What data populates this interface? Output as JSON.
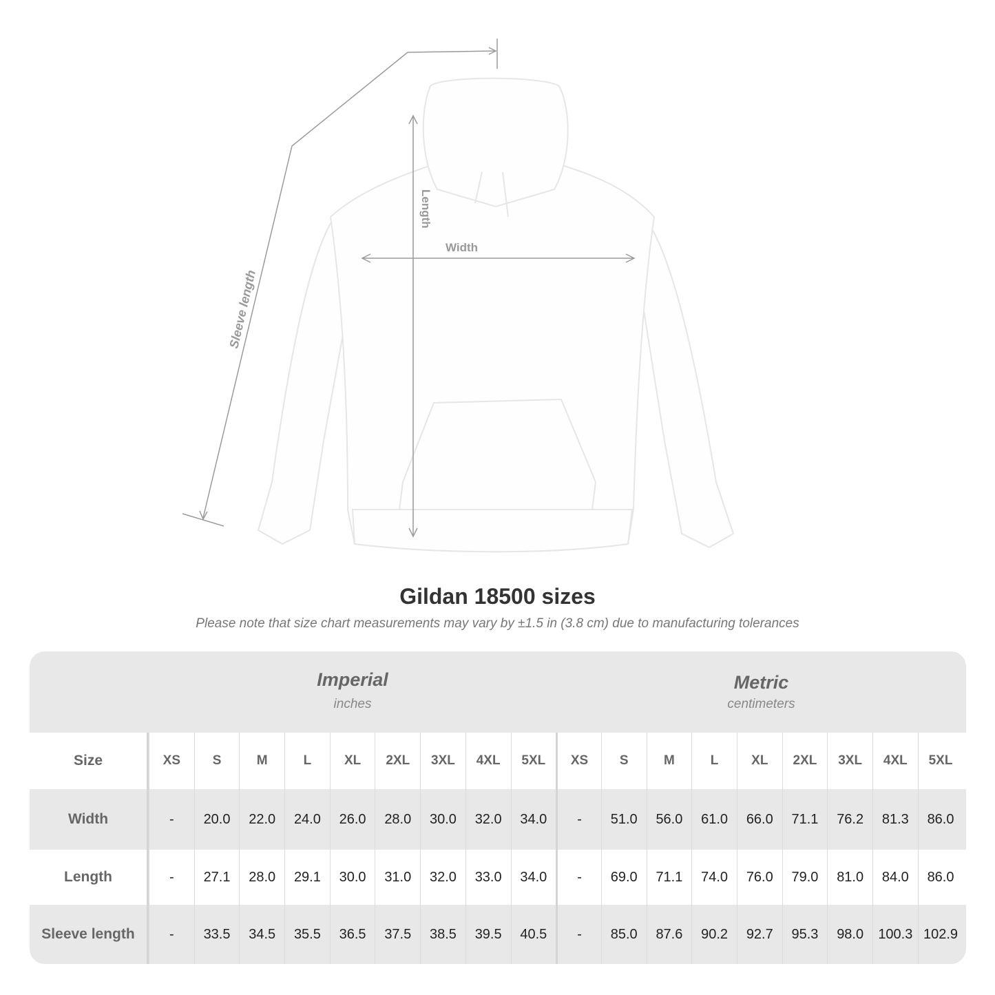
{
  "diagram": {
    "labels": {
      "length": "Length",
      "width": "Width",
      "sleeve": "Sleeve length"
    },
    "colors": {
      "garment": "#ffffff",
      "measure_line": "#9a9a9a"
    }
  },
  "title": "Gildan 18500 sizes",
  "subtitle": "Please note that size chart measurements may vary by ±1.5 in (3.8 cm) due to manufacturing tolerances",
  "table": {
    "imperial": {
      "title": "Imperial",
      "unit": "inches"
    },
    "metric": {
      "title": "Metric",
      "unit": "centimeters"
    },
    "size_label": "Size",
    "sizes": [
      "XS",
      "S",
      "M",
      "L",
      "XL",
      "2XL",
      "3XL",
      "4XL",
      "5XL"
    ],
    "rows": [
      {
        "label": "Width",
        "imperial": [
          "-",
          "20.0",
          "22.0",
          "24.0",
          "26.0",
          "28.0",
          "30.0",
          "32.0",
          "34.0"
        ],
        "metric": [
          "-",
          "51.0",
          "56.0",
          "61.0",
          "66.0",
          "71.1",
          "76.2",
          "81.3",
          "86.0"
        ]
      },
      {
        "label": "Length",
        "imperial": [
          "-",
          "27.1",
          "28.0",
          "29.1",
          "30.0",
          "31.0",
          "32.0",
          "33.0",
          "34.0"
        ],
        "metric": [
          "-",
          "69.0",
          "71.1",
          "74.0",
          "76.0",
          "79.0",
          "81.0",
          "84.0",
          "86.0"
        ]
      },
      {
        "label": "Sleeve length",
        "imperial": [
          "-",
          "33.5",
          "34.5",
          "35.5",
          "36.5",
          "37.5",
          "38.5",
          "39.5",
          "40.5"
        ],
        "metric": [
          "-",
          "85.0",
          "87.6",
          "90.2",
          "92.7",
          "95.3",
          "98.0",
          "100.3",
          "102.9"
        ]
      }
    ],
    "colors": {
      "band": "#e8e8e8",
      "label_text": "#666666"
    }
  }
}
